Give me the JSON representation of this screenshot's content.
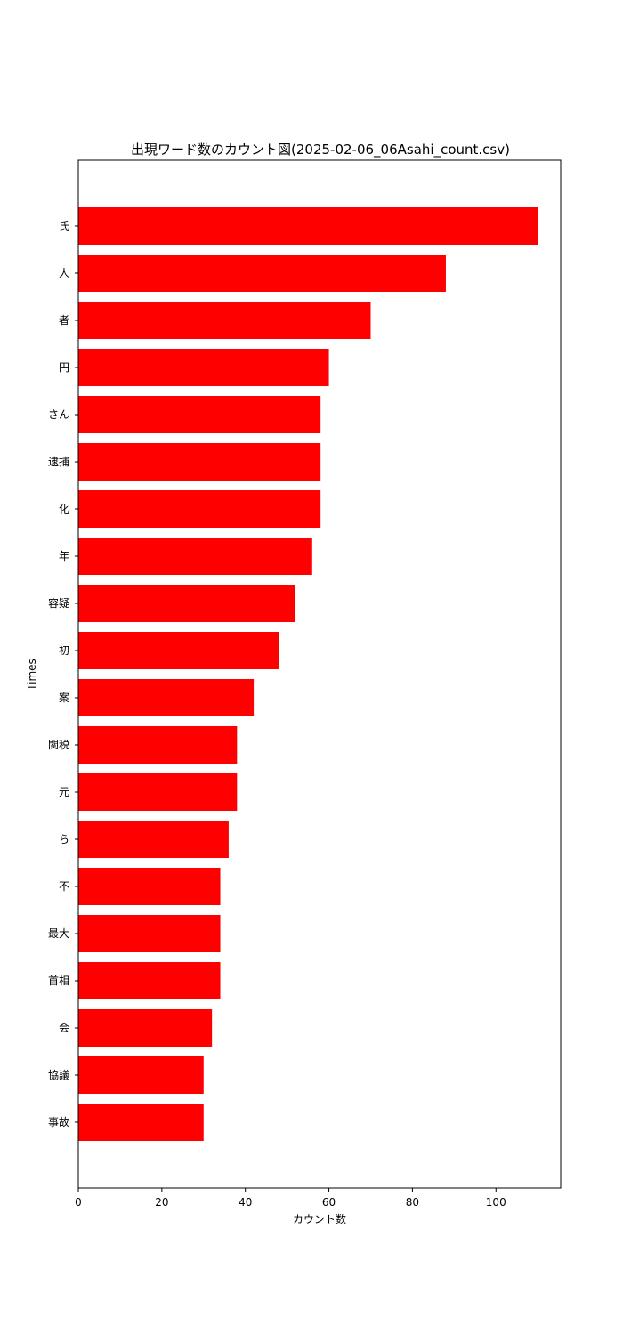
{
  "chart_data": {
    "type": "bar",
    "orientation": "horizontal",
    "title": "出現ワード数のカウント図(2025-02-06_06Asahi_count.csv)",
    "xlabel": "カウント数",
    "ylabel": "Times",
    "xlim": [
      0,
      115.5
    ],
    "xticks": [
      0,
      20,
      40,
      60,
      80,
      100
    ],
    "grid": false,
    "bar_color": "#ff0000",
    "categories": [
      "氏",
      "人",
      "者",
      "円",
      "さん",
      "逮捕",
      "化",
      "年",
      "容疑",
      "初",
      "案",
      "関税",
      "元",
      "ら",
      "不",
      "最大",
      "首相",
      "会",
      "協議",
      "事故"
    ],
    "values": [
      110,
      88,
      70,
      60,
      58,
      58,
      58,
      56,
      52,
      48,
      42,
      38,
      38,
      36,
      34,
      34,
      34,
      32,
      30,
      30
    ]
  }
}
